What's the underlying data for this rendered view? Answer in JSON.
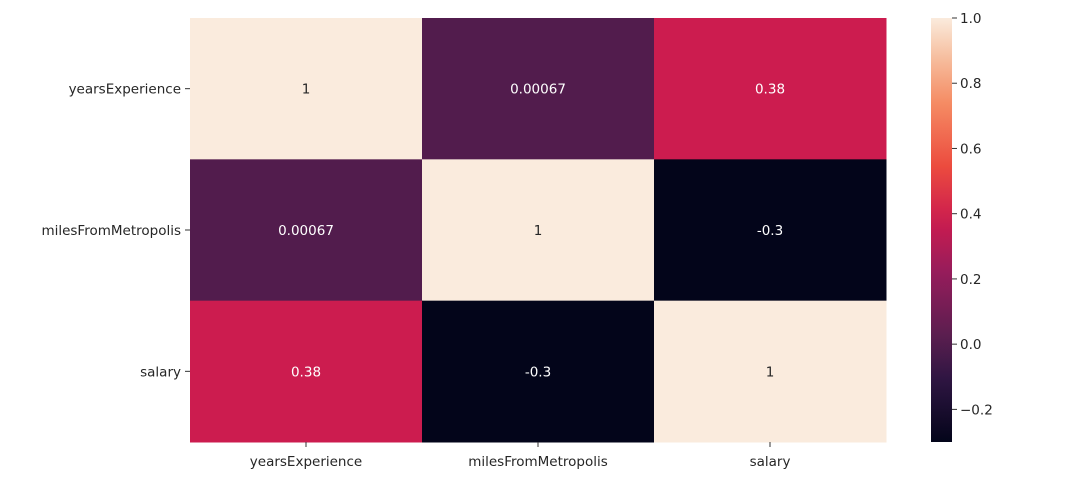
{
  "chart_data": {
    "type": "heatmap",
    "title": "",
    "xlabel": "",
    "ylabel": "",
    "x_categories": [
      "yearsExperience",
      "milesFromMetropolis",
      "salary"
    ],
    "y_categories": [
      "yearsExperience",
      "milesFromMetropolis",
      "salary"
    ],
    "values": [
      [
        1,
        0.00067,
        0.38
      ],
      [
        0.00067,
        1,
        -0.3
      ],
      [
        0.38,
        -0.3,
        1
      ]
    ],
    "annotations": [
      [
        "1",
        "0.00067",
        "0.38"
      ],
      [
        "0.00067",
        "1",
        "-0.3"
      ],
      [
        "0.38",
        "-0.3",
        "1"
      ]
    ],
    "colorbar": {
      "range": [
        -0.3,
        1.0
      ],
      "ticks": [
        -0.2,
        0.0,
        0.2,
        0.4,
        0.6,
        0.8,
        1.0
      ],
      "tick_labels": [
        "−0.2",
        "0.0",
        "0.2",
        "0.4",
        "0.6",
        "0.8",
        "1.0"
      ],
      "colormap": "rocket"
    },
    "grid": false
  }
}
